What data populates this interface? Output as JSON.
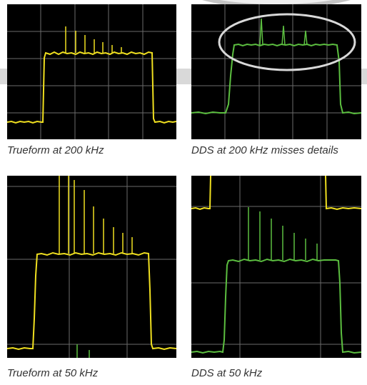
{
  "figure": {
    "panels": [
      {
        "id": "trueform-200khz",
        "caption": "Trueform at 200 kHz",
        "trace_color": "#f0e020"
      },
      {
        "id": "dds-200khz",
        "caption": "DDS at 200 kHz misses details",
        "trace_color": "#5cbf40"
      },
      {
        "id": "trueform-50khz",
        "caption": "Trueform at 50 kHz",
        "trace_color": "#f0e020"
      },
      {
        "id": "dds-50khz",
        "caption": "DDS at 50 kHz",
        "trace_color": "#5cbf40"
      }
    ],
    "colors": {
      "screen_background": "#000000",
      "grid": "#6b6b6b",
      "highlight_ellipse": "#d8d8d8"
    }
  }
}
